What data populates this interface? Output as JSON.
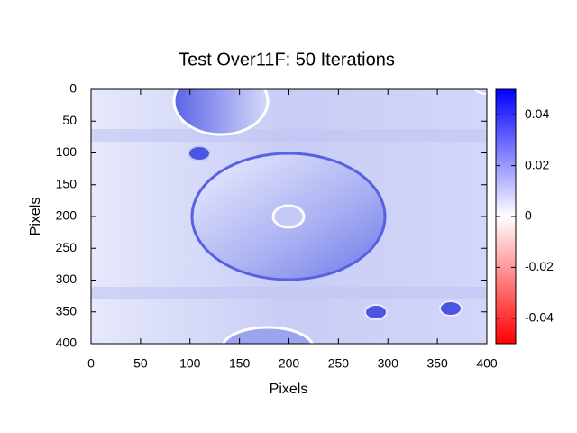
{
  "chart_data": {
    "type": "heatmap",
    "title": "Test Over11F: 50 Iterations",
    "xlabel": "Pixels",
    "ylabel": "Pixels",
    "xlim": [
      0,
      400
    ],
    "xticks": [
      0,
      50,
      100,
      150,
      200,
      250,
      300,
      350,
      400
    ],
    "ylim": [
      0,
      400
    ],
    "yticks": [
      0,
      50,
      100,
      150,
      200,
      250,
      300,
      350,
      400
    ],
    "y_inverted": true,
    "cblim": [
      -0.05,
      0.05
    ],
    "cbticks": [
      0.04,
      0.02,
      0,
      -0.02,
      -0.04
    ],
    "colormap": [
      "#ff0000",
      "#ffffff",
      "#0000ff"
    ]
  }
}
